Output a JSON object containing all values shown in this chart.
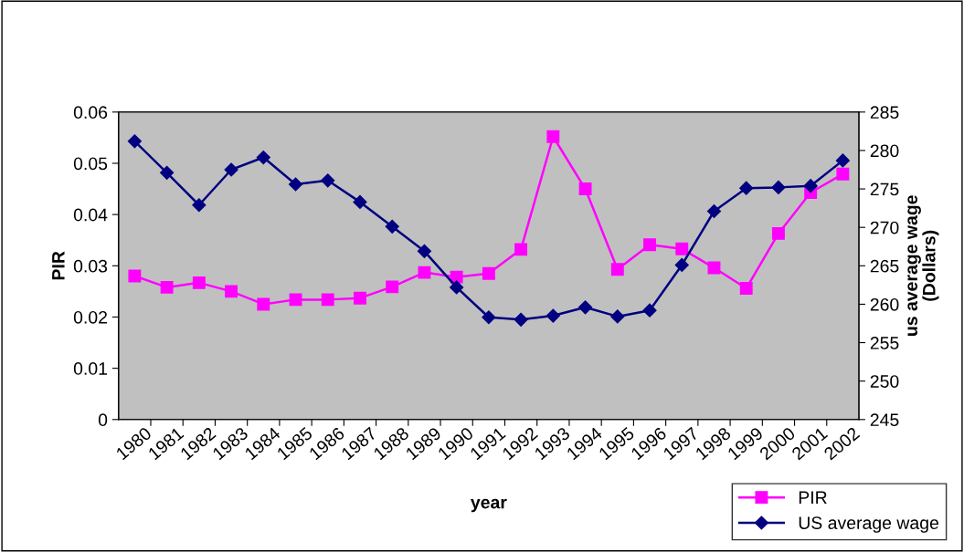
{
  "chart_data": {
    "type": "line",
    "xlabel": "year",
    "ylabel": "PIR",
    "y2label": "us average wage\n(Dollars)",
    "categories": [
      "1980",
      "1981",
      "1982",
      "1983",
      "1984",
      "1985",
      "1986",
      "1987",
      "1988",
      "1989",
      "1990",
      "1991",
      "1992",
      "1993",
      "1994",
      "1995",
      "1996",
      "1997",
      "1998",
      "1999",
      "2000",
      "2001",
      "2002"
    ],
    "series": [
      {
        "name": "PIR",
        "color": "#ff00ff",
        "marker": "square",
        "values": [
          0.028,
          0.0258,
          0.0267,
          0.025,
          0.0225,
          0.0234,
          0.0234,
          0.0237,
          0.0259,
          0.0287,
          0.0278,
          0.0285,
          0.0332,
          0.0552,
          0.045,
          0.0293,
          0.0341,
          0.0333,
          0.0296,
          0.0256,
          0.0363,
          0.0443,
          0.0479
        ]
      },
      {
        "name": "US average wage",
        "color": "#000080",
        "marker": "diamond",
        "axis": "y2",
        "values": [
          281.2,
          277.1,
          272.9,
          277.5,
          279.1,
          275.6,
          276.1,
          273.3,
          270.1,
          266.9,
          262.2,
          258.3,
          258.0,
          258.5,
          259.6,
          258.4,
          259.2,
          265.1,
          272.1,
          275.1,
          275.2,
          275.4,
          278.7
        ]
      }
    ],
    "ylim": [
      0,
      0.06
    ],
    "yticks": [
      {
        "value": 0,
        "label": "0"
      },
      0.01,
      0.02,
      0.03,
      0.04,
      0.05,
      0.06
    ],
    "y2lim": [
      245,
      285
    ],
    "y2ticks": [
      245,
      250,
      255,
      260,
      265,
      270,
      275,
      280,
      285
    ],
    "grid": false,
    "legend": "bottom right",
    "line_style": "solid"
  }
}
